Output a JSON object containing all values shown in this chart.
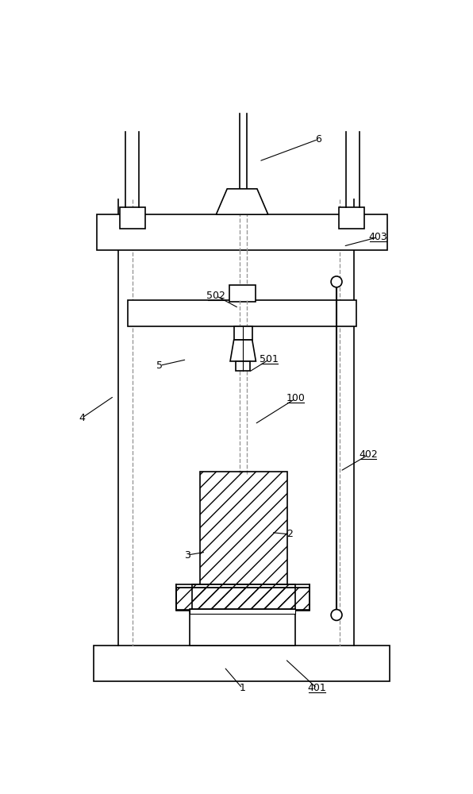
{
  "bg_color": "#ffffff",
  "line_color": "#000000",
  "dashed_color": "#999999",
  "label_configs": [
    [
      "1",
      298,
      970,
      268,
      935
    ],
    [
      "2",
      375,
      718,
      345,
      715
    ],
    [
      "3",
      208,
      752,
      238,
      747
    ],
    [
      "4",
      35,
      528,
      88,
      492
    ],
    [
      "5",
      163,
      442,
      207,
      432
    ],
    [
      "6",
      422,
      72,
      325,
      108
    ],
    [
      "100",
      385,
      496,
      318,
      538
    ],
    [
      "401",
      420,
      970,
      368,
      922
    ],
    [
      "402",
      504,
      588,
      458,
      615
    ],
    [
      "403",
      520,
      232,
      463,
      247
    ],
    [
      "501",
      342,
      432,
      308,
      453
    ],
    [
      "502",
      255,
      328,
      292,
      348
    ]
  ]
}
